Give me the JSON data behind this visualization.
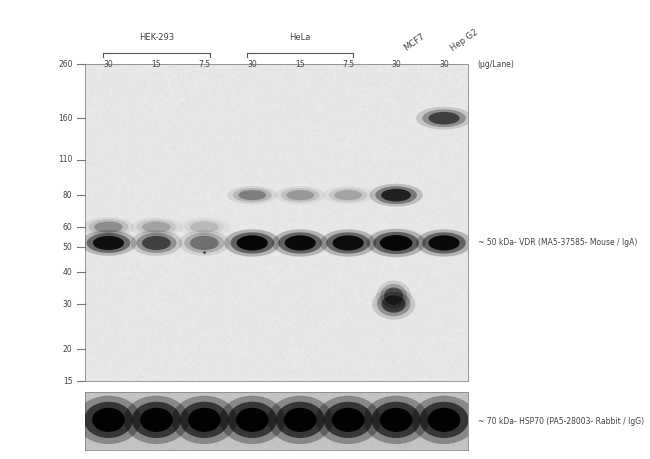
{
  "cell_lines": [
    "HEK-293",
    "HeLa",
    "MCF7",
    "Hep G2"
  ],
  "lane_labels": [
    "30",
    "15",
    "7.5",
    "30",
    "15",
    "7.5",
    "30",
    "30"
  ],
  "ug_lane_label": "(μg/Lane)",
  "mw_markers": [
    260,
    160,
    110,
    80,
    60,
    50,
    40,
    30,
    20,
    15
  ],
  "annotation_50kda": "~ 50 kDa- VDR (MA5-37585- Mouse / IgA)",
  "annotation_70kda": "~ 70 kDa- HSP70 (PA5-28003- Rabbit / IgG)",
  "panel_bg_color": "#e8e8e8",
  "lower_panel_bg_color": "#c8c8c8",
  "main_bg": "white"
}
